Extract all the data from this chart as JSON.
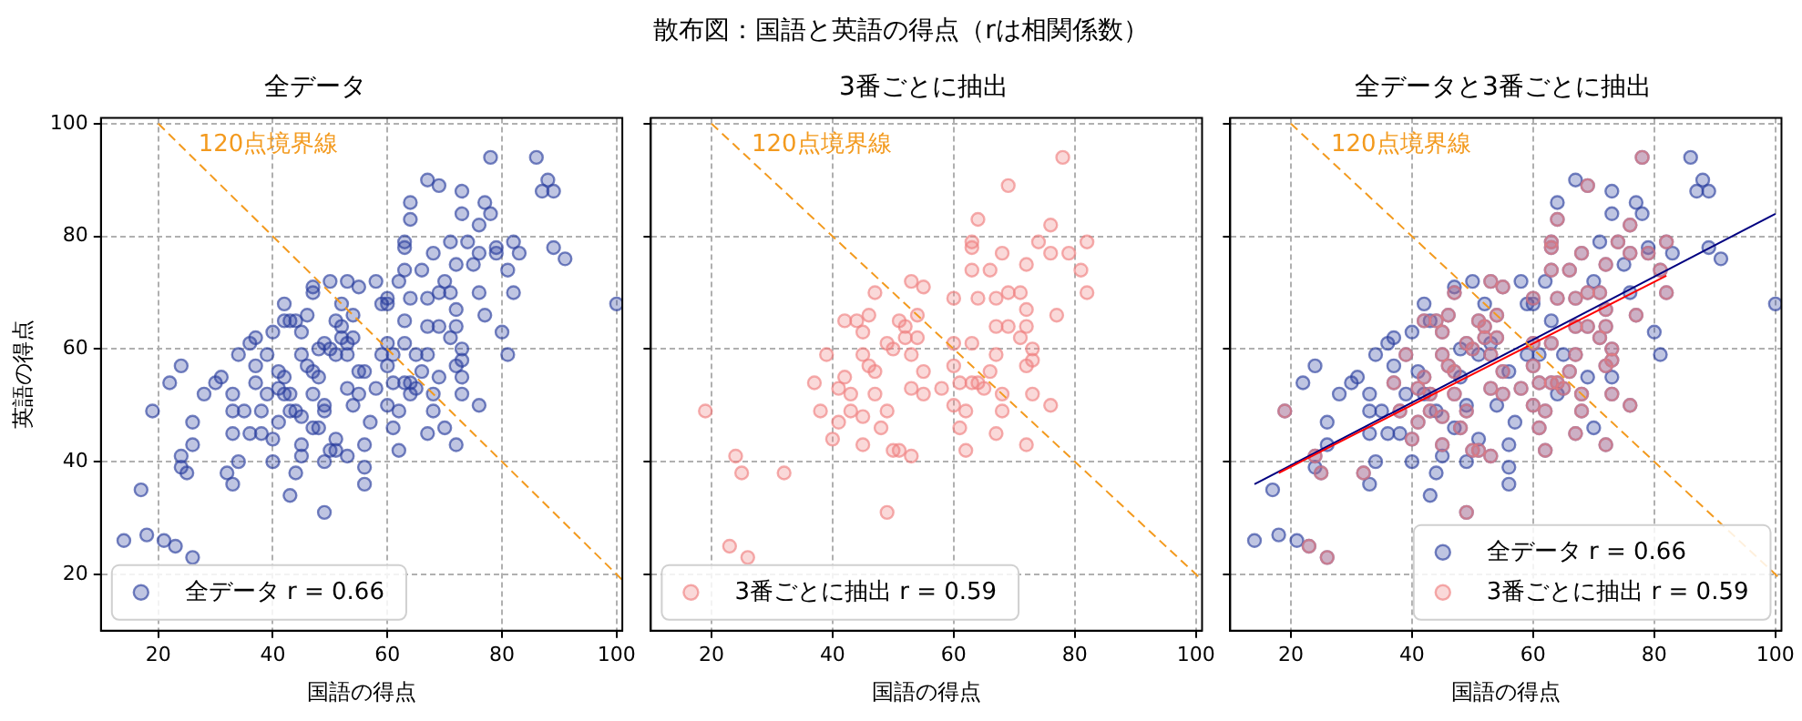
{
  "chart_data": [
    {
      "type": "scatter",
      "title": "全データ",
      "xlabel": "国語の得点",
      "ylabel": "英語の得点",
      "annotations": [
        "散布図：国語と英語の得点（rは相関係数）"
      ],
      "xlim": [
        10,
        101
      ],
      "ylim": [
        10,
        101
      ],
      "xticks": [
        20,
        40,
        60,
        80,
        100
      ],
      "yticks": [
        20,
        40,
        60,
        80,
        100
      ],
      "grid": true,
      "legend": "bottom left",
      "series": [
        {
          "name": "全データ r = 0.66",
          "color": "#2b3f9e",
          "marker": "circle",
          "x": [
            19,
            24,
            25,
            32,
            23,
            26,
            37,
            38,
            39,
            40,
            41,
            41,
            42,
            42,
            43,
            43,
            44,
            45,
            45,
            45,
            45,
            46,
            46,
            47,
            47,
            47,
            48,
            49,
            49,
            49,
            50,
            50,
            51,
            51,
            52,
            52,
            53,
            53,
            53,
            53,
            54,
            54,
            55,
            55,
            55,
            58,
            60,
            60,
            60,
            60,
            61,
            61,
            62,
            62,
            63,
            63,
            63,
            63,
            63,
            64,
            64,
            64,
            65,
            66,
            66,
            67,
            67,
            67,
            67,
            68,
            68,
            68,
            69,
            69,
            69,
            71,
            71,
            72,
            72,
            72,
            72,
            72,
            73,
            73,
            73,
            74,
            76,
            76,
            76,
            77,
            78,
            79,
            81,
            82,
            82,
            14,
            17,
            18,
            21,
            22,
            24,
            24,
            26,
            26,
            28,
            30,
            31,
            33,
            33,
            33,
            33,
            34,
            34,
            35,
            36,
            36,
            37,
            37,
            38,
            39,
            40,
            40,
            41,
            42,
            42,
            43,
            43,
            44,
            44,
            45,
            47,
            47,
            48,
            48,
            49,
            49,
            50,
            51,
            51,
            52,
            53,
            54,
            56,
            56,
            56,
            56,
            57,
            58,
            59,
            59,
            60,
            61,
            62,
            63,
            64,
            64,
            65,
            67,
            69,
            70,
            70,
            71,
            73,
            73,
            73,
            75,
            76,
            77,
            78,
            79,
            80,
            81,
            83,
            86,
            87,
            88,
            89,
            89,
            91,
            100
          ],
          "values": [
            49,
            41,
            38,
            38,
            25,
            23,
            54,
            49,
            59,
            44,
            53,
            47,
            55,
            65,
            52,
            49,
            65,
            63,
            48,
            59,
            43,
            66,
            57,
            70,
            56,
            52,
            46,
            61,
            49,
            31,
            60,
            42,
            65,
            42,
            64,
            62,
            72,
            59,
            53,
            41,
            66,
            62,
            71,
            56,
            52,
            53,
            69,
            61,
            57,
            50,
            54,
            46,
            49,
            42,
            61,
            79,
            78,
            74,
            54,
            83,
            69,
            54,
            53,
            74,
            56,
            69,
            64,
            59,
            45,
            77,
            52,
            49,
            89,
            70,
            64,
            70,
            62,
            75,
            67,
            64,
            57,
            43,
            60,
            58,
            52,
            79,
            82,
            77,
            50,
            66,
            94,
            77,
            74,
            79,
            70,
            26,
            35,
            27,
            26,
            54,
            57,
            39,
            43,
            47,
            52,
            54,
            55,
            52,
            49,
            45,
            36,
            40,
            59,
            49,
            45,
            61,
            62,
            57,
            45,
            52,
            63,
            40,
            56,
            68,
            52,
            65,
            34,
            49,
            38,
            41,
            71,
            46,
            60,
            55,
            50,
            40,
            72,
            59,
            44,
            68,
            61,
            50,
            56,
            43,
            36,
            39,
            47,
            72,
            68,
            59,
            68,
            59,
            72,
            65,
            52,
            86,
            59,
            90,
            55,
            72,
            46,
            79,
            88,
            84,
            55,
            75,
            70,
            86,
            84,
            78,
            63,
            59,
            77,
            94,
            88,
            90,
            88,
            78,
            76,
            68
          ]
        },
        {
          "type": "line",
          "name": "120点境界線",
          "color": "#f39a1e",
          "line_style": "dashed",
          "marker": "none",
          "x": [
            20,
            101
          ],
          "values": [
            100,
            19
          ]
        }
      ]
    },
    {
      "type": "scatter",
      "title": "3番ごとに抽出",
      "xlabel": "国語の得点",
      "xlim": [
        10,
        101
      ],
      "ylim": [
        10,
        101
      ],
      "xticks": [
        20,
        40,
        60,
        80,
        100
      ],
      "yticks": [
        20,
        40,
        60,
        80,
        100
      ],
      "tick_labels": "x",
      "grid": true,
      "legend": "bottom left",
      "series": [
        {
          "name": "3番ごとに抽出 r = 0.59",
          "color": "#f08080",
          "marker": "circle",
          "x": [
            19,
            24,
            25,
            32,
            23,
            26,
            37,
            38,
            39,
            40,
            41,
            41,
            42,
            42,
            43,
            43,
            44,
            45,
            45,
            45,
            45,
            46,
            46,
            47,
            47,
            47,
            48,
            49,
            49,
            49,
            50,
            50,
            51,
            51,
            52,
            52,
            53,
            53,
            53,
            53,
            54,
            54,
            55,
            55,
            55,
            58,
            60,
            60,
            60,
            60,
            61,
            61,
            62,
            62,
            63,
            63,
            63,
            63,
            63,
            64,
            64,
            64,
            65,
            66,
            66,
            67,
            67,
            67,
            67,
            68,
            68,
            68,
            69,
            69,
            69,
            71,
            71,
            72,
            72,
            72,
            72,
            72,
            73,
            73,
            73,
            74,
            76,
            76,
            76,
            77,
            78,
            79,
            81,
            82,
            82
          ],
          "values": [
            49,
            41,
            38,
            38,
            25,
            23,
            54,
            49,
            59,
            44,
            53,
            47,
            55,
            65,
            52,
            49,
            65,
            63,
            48,
            59,
            43,
            66,
            57,
            70,
            56,
            52,
            46,
            61,
            49,
            31,
            60,
            42,
            65,
            42,
            64,
            62,
            72,
            59,
            53,
            41,
            66,
            62,
            71,
            56,
            52,
            53,
            69,
            61,
            57,
            50,
            54,
            46,
            49,
            42,
            61,
            79,
            78,
            74,
            54,
            83,
            69,
            54,
            53,
            74,
            56,
            69,
            64,
            59,
            45,
            77,
            52,
            49,
            89,
            70,
            64,
            70,
            62,
            75,
            67,
            64,
            57,
            43,
            60,
            58,
            52,
            79,
            82,
            77,
            50,
            66,
            94,
            77,
            74,
            79,
            70
          ]
        },
        {
          "type": "line",
          "name": "120点境界線",
          "color": "#f39a1e",
          "line_style": "dashed",
          "marker": "none",
          "x": [
            20,
            101
          ],
          "values": [
            100,
            19
          ]
        }
      ]
    },
    {
      "type": "scatter",
      "title": "全データと3番ごとに抽出",
      "xlabel": "国語の得点",
      "xlim": [
        10,
        101
      ],
      "ylim": [
        10,
        101
      ],
      "xticks": [
        20,
        40,
        60,
        80,
        100
      ],
      "yticks": [
        20,
        40,
        60,
        80,
        100
      ],
      "tick_labels": "x",
      "grid": true,
      "legend": "bottom right",
      "series": [
        {
          "name": "全データ r = 0.66",
          "color": "#2b3f9e",
          "marker": "circle",
          "x": [
            19,
            24,
            25,
            32,
            23,
            26,
            37,
            38,
            39,
            40,
            41,
            41,
            42,
            42,
            43,
            43,
            44,
            45,
            45,
            45,
            45,
            46,
            46,
            47,
            47,
            47,
            48,
            49,
            49,
            49,
            50,
            50,
            51,
            51,
            52,
            52,
            53,
            53,
            53,
            53,
            54,
            54,
            55,
            55,
            55,
            58,
            60,
            60,
            60,
            60,
            61,
            61,
            62,
            62,
            63,
            63,
            63,
            63,
            63,
            64,
            64,
            64,
            65,
            66,
            66,
            67,
            67,
            67,
            67,
            68,
            68,
            68,
            69,
            69,
            69,
            71,
            71,
            72,
            72,
            72,
            72,
            72,
            73,
            73,
            73,
            74,
            76,
            76,
            76,
            77,
            78,
            79,
            81,
            82,
            82,
            14,
            17,
            18,
            21,
            22,
            24,
            24,
            26,
            26,
            28,
            30,
            31,
            33,
            33,
            33,
            33,
            34,
            34,
            35,
            36,
            36,
            37,
            37,
            38,
            39,
            40,
            40,
            41,
            42,
            42,
            43,
            43,
            44,
            44,
            45,
            47,
            47,
            48,
            48,
            49,
            49,
            50,
            51,
            51,
            52,
            53,
            54,
            56,
            56,
            56,
            56,
            57,
            58,
            59,
            59,
            60,
            61,
            62,
            63,
            64,
            64,
            65,
            67,
            69,
            70,
            70,
            71,
            73,
            73,
            73,
            75,
            76,
            77,
            78,
            79,
            80,
            81,
            83,
            86,
            87,
            88,
            89,
            89,
            91,
            100
          ],
          "values": [
            49,
            41,
            38,
            38,
            25,
            23,
            54,
            49,
            59,
            44,
            53,
            47,
            55,
            65,
            52,
            49,
            65,
            63,
            48,
            59,
            43,
            66,
            57,
            70,
            56,
            52,
            46,
            61,
            49,
            31,
            60,
            42,
            65,
            42,
            64,
            62,
            72,
            59,
            53,
            41,
            66,
            62,
            71,
            56,
            52,
            53,
            69,
            61,
            57,
            50,
            54,
            46,
            49,
            42,
            61,
            79,
            78,
            74,
            54,
            83,
            69,
            54,
            53,
            74,
            56,
            69,
            64,
            59,
            45,
            77,
            52,
            49,
            89,
            70,
            64,
            70,
            62,
            75,
            67,
            64,
            57,
            43,
            60,
            58,
            52,
            79,
            82,
            77,
            50,
            66,
            94,
            77,
            74,
            79,
            70,
            26,
            35,
            27,
            26,
            54,
            57,
            39,
            43,
            47,
            52,
            54,
            55,
            52,
            49,
            45,
            36,
            40,
            59,
            49,
            45,
            61,
            62,
            57,
            45,
            52,
            63,
            40,
            56,
            68,
            52,
            65,
            34,
            49,
            38,
            41,
            71,
            46,
            60,
            55,
            50,
            40,
            72,
            59,
            44,
            68,
            61,
            50,
            56,
            43,
            36,
            39,
            47,
            72,
            68,
            59,
            68,
            59,
            72,
            65,
            52,
            86,
            59,
            90,
            55,
            72,
            46,
            79,
            88,
            84,
            55,
            75,
            70,
            86,
            84,
            78,
            63,
            59,
            77,
            94,
            88,
            90,
            88,
            78,
            76,
            68
          ]
        },
        {
          "name": "3番ごとに抽出 r = 0.59",
          "color": "#f08080",
          "marker": "circle",
          "x": [
            19,
            24,
            25,
            32,
            23,
            26,
            37,
            38,
            39,
            40,
            41,
            41,
            42,
            42,
            43,
            43,
            44,
            45,
            45,
            45,
            45,
            46,
            46,
            47,
            47,
            47,
            48,
            49,
            49,
            49,
            50,
            50,
            51,
            51,
            52,
            52,
            53,
            53,
            53,
            53,
            54,
            54,
            55,
            55,
            55,
            58,
            60,
            60,
            60,
            60,
            61,
            61,
            62,
            62,
            63,
            63,
            63,
            63,
            63,
            64,
            64,
            64,
            65,
            66,
            66,
            67,
            67,
            67,
            67,
            68,
            68,
            68,
            69,
            69,
            69,
            71,
            71,
            72,
            72,
            72,
            72,
            72,
            73,
            73,
            73,
            74,
            76,
            76,
            76,
            77,
            78,
            79,
            81,
            82,
            82
          ],
          "values": [
            49,
            41,
            38,
            38,
            25,
            23,
            54,
            49,
            59,
            44,
            53,
            47,
            55,
            65,
            52,
            49,
            65,
            63,
            48,
            59,
            43,
            66,
            57,
            70,
            56,
            52,
            46,
            61,
            49,
            31,
            60,
            42,
            65,
            42,
            64,
            62,
            72,
            59,
            53,
            41,
            66,
            62,
            71,
            56,
            52,
            53,
            69,
            61,
            57,
            50,
            54,
            46,
            49,
            42,
            61,
            79,
            78,
            74,
            54,
            83,
            69,
            54,
            53,
            74,
            56,
            69,
            64,
            59,
            45,
            77,
            52,
            49,
            89,
            70,
            64,
            70,
            62,
            75,
            67,
            64,
            57,
            43,
            60,
            58,
            52,
            79,
            82,
            77,
            50,
            66,
            94,
            77,
            74,
            79,
            70
          ]
        },
        {
          "type": "line",
          "color": "#000080",
          "marker": "none",
          "x": [
            14,
            100
          ],
          "values": [
            36,
            84
          ]
        },
        {
          "type": "line",
          "color": "#ff0000",
          "marker": "none",
          "x": [
            18,
            82
          ],
          "values": [
            38,
            73
          ]
        },
        {
          "type": "line",
          "name": "120点境界線",
          "color": "#f39a1e",
          "line_style": "dashed",
          "marker": "none",
          "x": [
            20,
            101
          ],
          "values": [
            100,
            19
          ]
        }
      ]
    }
  ]
}
